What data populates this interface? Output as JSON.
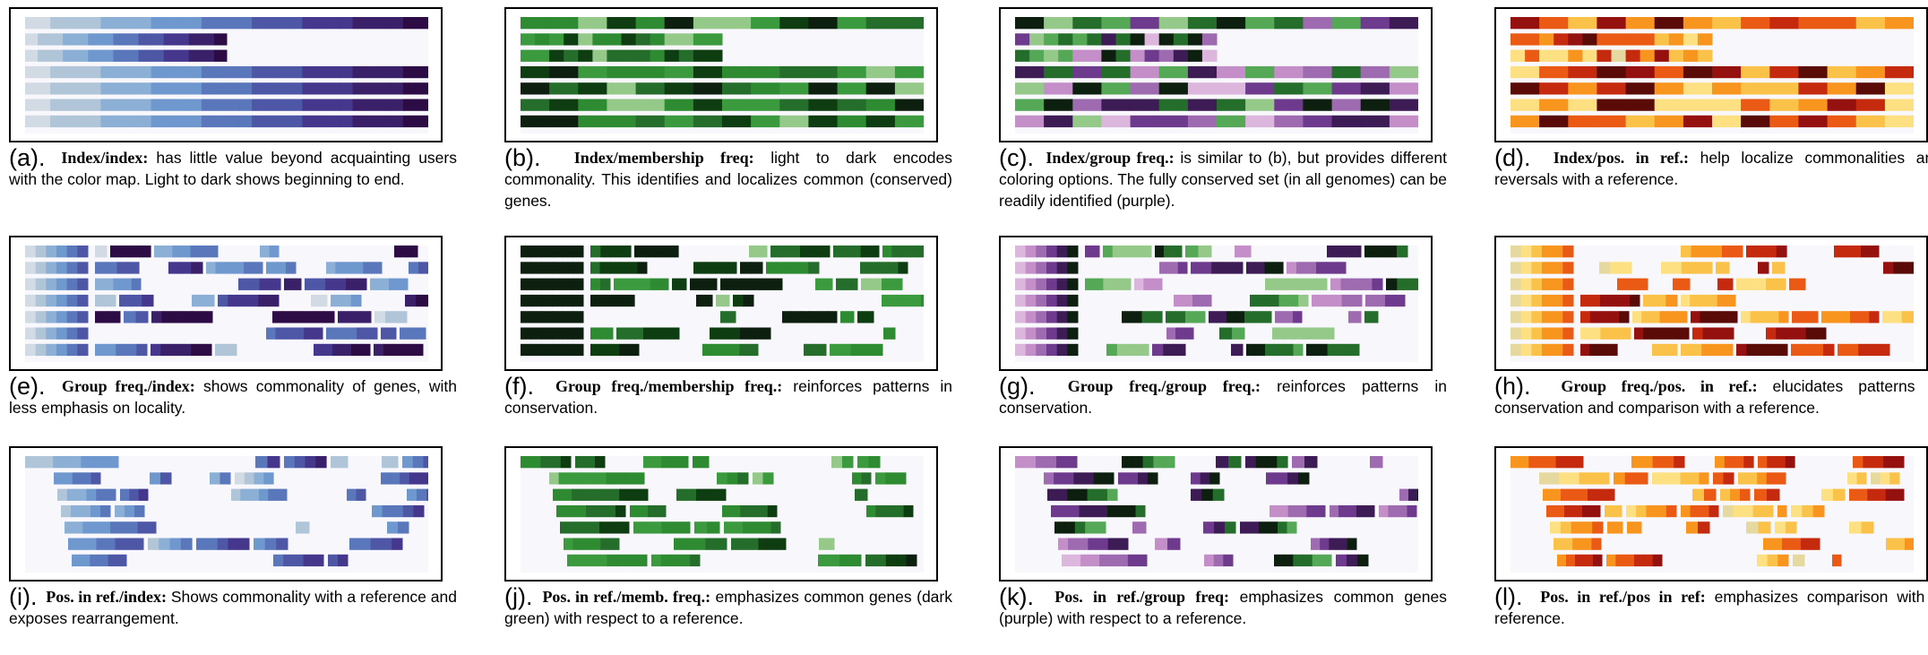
{
  "colormaps": {
    "purple": [
      "#d2dbe4",
      "#b1c5d8",
      "#8cafd6",
      "#6f98cf",
      "#5a77bb",
      "#4e56a6",
      "#45378c",
      "#3a2068",
      "#2d0b45"
    ],
    "green": [
      "#95c98a",
      "#3b9a3d",
      "#2e8b32",
      "#256d2a",
      "#0e3d12",
      "#0d1f0e"
    ],
    "fire": [
      "#e6d9a0",
      "#fde082",
      "#fbc24a",
      "#f7951f",
      "#ea5a14",
      "#c62a0e",
      "#941110",
      "#5a0b08"
    ],
    "prgn": [
      "#ddb6dd",
      "#c48ec8",
      "#9e6ab0",
      "#6e3a8e",
      "#3d1b54",
      "#0d1f0e",
      "#256d2a",
      "#55a855",
      "#95c98a"
    ]
  },
  "panels": [
    {
      "label": "(a).",
      "title": "Index/index:",
      "body": " has little value beyond acquainting users with the color map.  Light to dark shows beginning to end."
    },
    {
      "label": "(b).",
      "title": "Index/membership freq:",
      "body": " light to dark encodes commonality.  This identifies and localizes common (conserved) genes."
    },
    {
      "label": "(c).",
      "title": "Index/group freq.:",
      "body": " is similar to (b), but provides different coloring options.  The fully conserved set (in all genomes) can be readily identified (purple)."
    },
    {
      "label": "(d).",
      "title": "Index/pos. in ref.:",
      "body": " help localize commonalities and reversals with a reference."
    },
    {
      "label": "(e).",
      "title": "Group freq./index:",
      "body": "  shows commonality of genes, with less emphasis on locality."
    },
    {
      "label": "(f).",
      "title": "Group freq./membership freq.:",
      "body": " reinforces patterns in conservation."
    },
    {
      "label": "(g).",
      "title": "Group freq./group freq.:",
      "body": " reinforces patterns in conservation."
    },
    {
      "label": "(h).",
      "title": "Group freq./pos. in ref.:",
      "body": " elucidates patterns in conservation and comparison with a reference."
    },
    {
      "label": "(i).",
      "title": "Pos. in ref./index:",
      "body": " Shows commonality with a reference and exposes rearrangement."
    },
    {
      "label": "(j).",
      "title": "Pos. in ref./memb. freq.:",
      "body": " emphasizes common genes (dark green) with respect to a reference."
    },
    {
      "label": "(k).",
      "title": "Pos. in ref./group freq:",
      "body": " emphasizes common genes (purple) with respect to a reference."
    },
    {
      "label": "(l).",
      "title": "Pos. in ref./pos in ref:",
      "body": " emphasizes comparison with a reference."
    }
  ]
}
